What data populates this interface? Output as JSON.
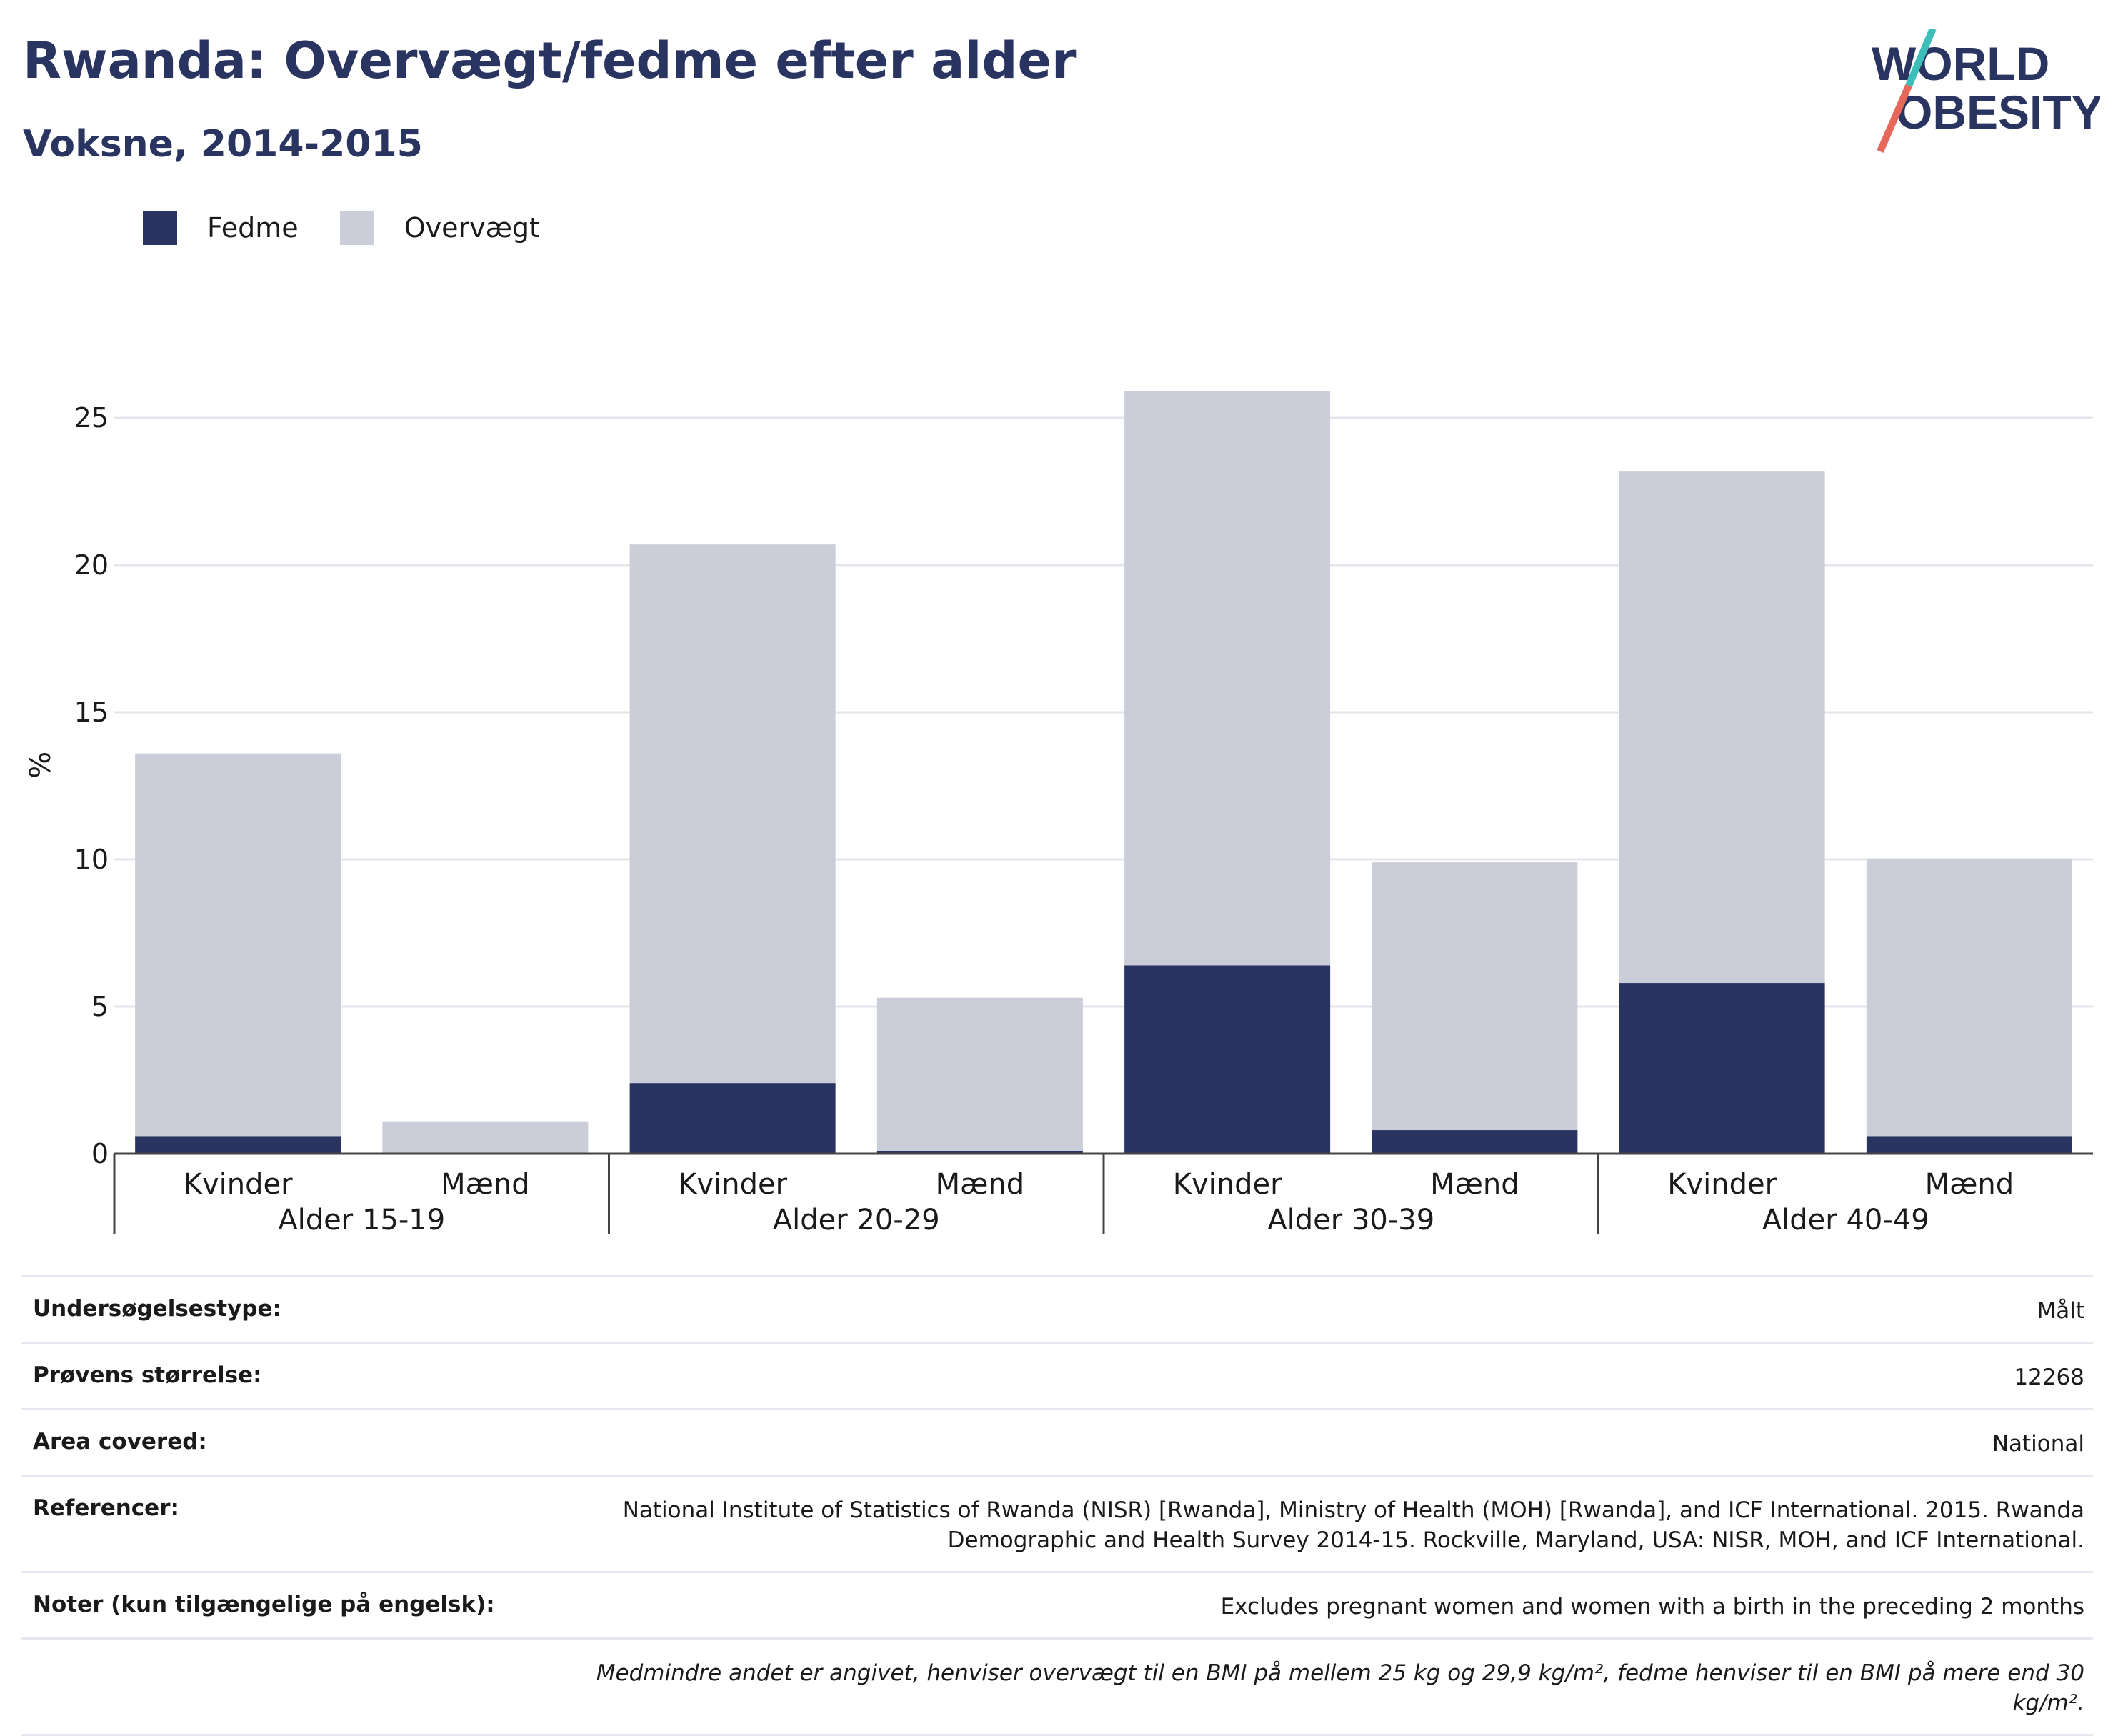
{
  "header": {
    "title": "Rwanda: Overvægt/fedme efter alder",
    "subtitle": "Voksne, 2014-2015"
  },
  "logo": {
    "line1": "WORLD",
    "line2": "OBESITY"
  },
  "colors": {
    "fedme": "#2a3461",
    "overvaegt": "#cbcdd9",
    "title": "#2a3461",
    "logo_teal": "#3bbfb8",
    "logo_red": "#e5685a"
  },
  "chart_data": {
    "type": "bar",
    "stacked": true,
    "ylabel": "%",
    "ylim": [
      0,
      27
    ],
    "yticks": [
      0,
      5,
      10,
      15,
      20,
      25
    ],
    "grid": true,
    "legend_position": "top-left",
    "groups": [
      "Alder 15-19",
      "Alder 20-29",
      "Alder 30-39",
      "Alder 40-49"
    ],
    "categories": [
      "Kvinder",
      "Mænd",
      "Kvinder",
      "Mænd",
      "Kvinder",
      "Mænd",
      "Kvinder",
      "Mænd"
    ],
    "series": [
      {
        "name": "Fedme",
        "values": [
          0.6,
          0.0,
          2.4,
          0.1,
          6.4,
          0.8,
          5.8,
          0.6
        ]
      },
      {
        "name": "Overvægt",
        "values": [
          13.0,
          1.1,
          18.3,
          5.2,
          19.5,
          9.1,
          17.4,
          9.4
        ]
      }
    ]
  },
  "info": {
    "rows": [
      {
        "label": "Undersøgelsestype:",
        "value": "Målt"
      },
      {
        "label": "Prøvens størrelse:",
        "value": "12268"
      },
      {
        "label": "Area covered:",
        "value": "National"
      },
      {
        "label": "Referencer:",
        "value": "National Institute of Statistics of Rwanda (NISR) [Rwanda], Ministry of Health (MOH) [Rwanda], and ICF International. 2015. Rwanda Demographic and Health Survey 2014-15. Rockville, Maryland, USA: NISR, MOH, and ICF International."
      },
      {
        "label": "Noter (kun tilgængelige på engelsk):",
        "value": "Excludes pregnant women and women with a birth in the preceding 2 months"
      }
    ],
    "footnote": "Medmindre andet er angivet, henviser overvægt til en BMI på mellem 25 kg og 29,9 kg/m², fedme henviser til en BMI på mere end 30 kg/m²."
  }
}
